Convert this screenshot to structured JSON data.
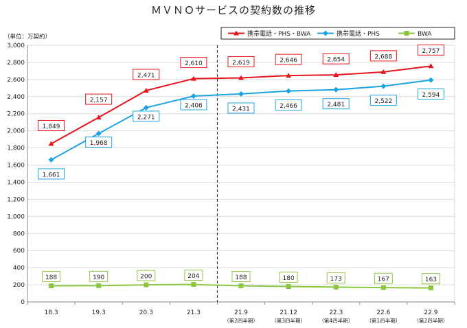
{
  "chart_data": {
    "type": "line",
    "title": "ＭＶＮＯサービスの契約数の推移",
    "ylabel": "（単位：万契約）",
    "ylim": [
      0,
      3000
    ],
    "ytick_step": 200,
    "yticks": [
      "0",
      "200",
      "400",
      "600",
      "800",
      "1,000",
      "1,200",
      "1,400",
      "1,600",
      "1,800",
      "2,000",
      "2,200",
      "2,400",
      "2,600",
      "2,800",
      "3,000"
    ],
    "categories": [
      "18.3",
      "19.3",
      "20.3",
      "21.3",
      "21.9",
      "21.12",
      "22.3",
      "22.6",
      "22.9"
    ],
    "category_notes": [
      "",
      "",
      "",
      "",
      "（第2四半期）",
      "（第3四半期）",
      "（第4四半期）",
      "（第1四半期）",
      "（第2四半期）"
    ],
    "divider_after_category": "21.3",
    "grid": true,
    "legend_position": "top-right",
    "series": [
      {
        "name": "携帯電話・PHS・BWA",
        "color": "#e8141c",
        "marker": "triangle",
        "values": [
          1849,
          2157,
          2471,
          2610,
          2619,
          2646,
          2654,
          2688,
          2757
        ],
        "labels": [
          "1,849",
          "2,157",
          "2,471",
          "2,610",
          "2,619",
          "2,646",
          "2,654",
          "2,688",
          "2,757"
        ]
      },
      {
        "name": "携帯電話・PHS",
        "color": "#1ca3e4",
        "marker": "diamond",
        "values": [
          1661,
          1968,
          2271,
          2406,
          2431,
          2466,
          2481,
          2522,
          2594
        ],
        "labels": [
          "1,661",
          "1,968",
          "2,271",
          "2,406",
          "2,431",
          "2,466",
          "2,481",
          "2,522",
          "2,594"
        ]
      },
      {
        "name": "BWA",
        "color": "#8cc63f",
        "marker": "square",
        "values": [
          188,
          190,
          200,
          204,
          188,
          180,
          173,
          167,
          163
        ],
        "labels": [
          "188",
          "190",
          "200",
          "204",
          "188",
          "180",
          "173",
          "167",
          "163"
        ]
      }
    ]
  }
}
